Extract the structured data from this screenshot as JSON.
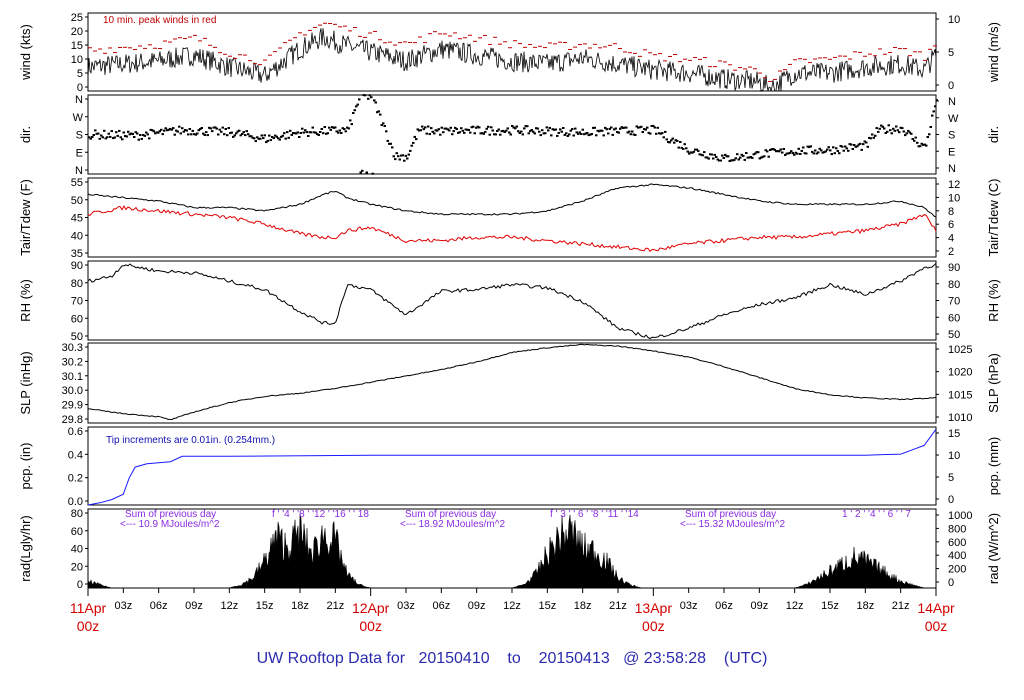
{
  "footer": {
    "prefix": "UW Rooftop Data for",
    "start": "20150410",
    "to": "to",
    "end": "20150413",
    "at": "@ 23:58:28",
    "tz": "(UTC)"
  },
  "time_axis": {
    "major": [
      {
        "top": "11Apr",
        "bottom": "00z",
        "hour": 0
      },
      {
        "top": "12Apr",
        "bottom": "00z",
        "hour": 24
      },
      {
        "top": "13Apr",
        "bottom": "00z",
        "hour": 48
      },
      {
        "top": "14Apr",
        "bottom": "00z",
        "hour": 72
      }
    ],
    "minor_hours": [
      3,
      6,
      9,
      12,
      15,
      18,
      21,
      27,
      30,
      33,
      36,
      39,
      42,
      45,
      51,
      54,
      57,
      60,
      63,
      66,
      69
    ],
    "minor_labels": [
      "03z",
      "06z",
      "09z",
      "12z",
      "15z",
      "18z",
      "21z",
      "03z",
      "06z",
      "09z",
      "12z",
      "15z",
      "18z",
      "21z",
      "03z",
      "06z",
      "09z",
      "12z",
      "15z",
      "18z",
      "21z"
    ],
    "range_hours": [
      0,
      72
    ],
    "major_color": "#d40000"
  },
  "panels": [
    {
      "id": "wind",
      "left_label": "wind (kts)",
      "right_label": "wind (m/s)",
      "left_ticks": [
        "25",
        "20",
        "15",
        "10",
        "5",
        "0"
      ],
      "right_ticks": [
        "10",
        "5",
        "0"
      ],
      "annotation": "10 min. peak winds in red",
      "annotation_color": "#c00000"
    },
    {
      "id": "dir",
      "left_label": "dir.",
      "right_label": "dir.",
      "left_ticks": [
        "N",
        "W",
        "S",
        "E",
        "N"
      ],
      "right_ticks": [
        "N",
        "W",
        "S",
        "E",
        "N"
      ]
    },
    {
      "id": "temp",
      "left_label": "Tair/Tdew (F)",
      "right_label": "Tair/Tdew (C)",
      "left_ticks": [
        "55",
        "50",
        "45",
        "40",
        "35"
      ],
      "right_ticks": [
        "12",
        "10",
        "8",
        "6",
        "4",
        "2"
      ]
    },
    {
      "id": "rh",
      "left_label": "RH (%)",
      "right_label": "RH (%)",
      "left_ticks": [
        "90",
        "80",
        "70",
        "60",
        "50"
      ],
      "right_ticks": [
        "90",
        "80",
        "70",
        "60",
        "50"
      ]
    },
    {
      "id": "slp",
      "left_label": "SLP (inHg)",
      "right_label": "SLP (hPa)",
      "left_ticks": [
        "30.3",
        "30.2",
        "30.1",
        "30.0",
        "29.9",
        "29.8"
      ],
      "right_ticks": [
        "1025",
        "1020",
        "1015",
        "1010"
      ]
    },
    {
      "id": "pcp",
      "left_label": "pcp. (in)",
      "right_label": "pcp. (mm)",
      "left_ticks": [
        "0.6",
        "0.4",
        "0.2",
        "0.0"
      ],
      "right_ticks": [
        "15",
        "10",
        "5",
        "0"
      ],
      "annotation": "Tip increments are 0.01in. (0.254mm.)",
      "annotation_color": "#1010b0"
    },
    {
      "id": "rad",
      "left_label": "rad(Lgly/hr)",
      "right_label": "rad (W/m^2)",
      "left_ticks": [
        "80",
        "60",
        "40",
        "20",
        "0"
      ],
      "right_ticks": [
        "1000",
        "800",
        "600",
        "400",
        "200",
        "0"
      ],
      "annotation_color": "#8a2be2",
      "sums": [
        {
          "title": "Sum of previous day",
          "value": "<--- 10.9 MJoules/m^2"
        },
        {
          "title": "Sum of previous day",
          "value": "<--- 18.92 MJoules/m^2"
        },
        {
          "title": "Sum of previous day",
          "value": "<--- 15.32 MJoules/m^2"
        }
      ],
      "sunhours": [
        {
          "text": "f ' '4 ' '8 ' '12 ' '16 ' ' 18"
        },
        {
          "text": "f ' 3 ' ' 6 ' '8 ' '11 ' '14"
        },
        {
          "text": "1 ' 2 ' '4 ' ' 6 ' ' 7"
        }
      ]
    }
  ],
  "chart_data": {
    "type": "line",
    "title": "UW Rooftop Data for 20150410 to 20150413 @ 23:58:28 (UTC)",
    "x_unit": "hours since 11Apr 00z",
    "series": [
      {
        "name": "wind speed (kts)",
        "color": "#000000",
        "x": [
          0,
          3,
          6,
          9,
          12,
          15,
          18,
          20,
          22,
          24,
          27,
          30,
          33,
          36,
          39,
          42,
          45,
          48,
          51,
          54,
          57,
          58,
          60,
          63,
          66,
          69,
          71,
          72
        ],
        "values": [
          8,
          9,
          10,
          12,
          8,
          5,
          14,
          18,
          15,
          13,
          10,
          14,
          12,
          10,
          9,
          11,
          9,
          7,
          6,
          4,
          3,
          1,
          6,
          6,
          8,
          9,
          7,
          12
        ]
      },
      {
        "name": "10 min peak wind (kts)",
        "color": "#c00000",
        "x": [
          0,
          3,
          6,
          9,
          12,
          15,
          18,
          20,
          22,
          24,
          27,
          30,
          33,
          36,
          39,
          42,
          45,
          48,
          51,
          54,
          57,
          58,
          60,
          63,
          66,
          69,
          71,
          72
        ],
        "values": [
          13,
          14,
          15,
          17,
          12,
          9,
          19,
          22,
          20,
          18,
          15,
          19,
          17,
          15,
          14,
          15,
          14,
          11,
          10,
          8,
          6,
          3,
          9,
          10,
          12,
          13,
          11,
          16
        ]
      },
      {
        "name": "wind direction (deg)",
        "color": "#000000",
        "x": [
          0,
          4,
          8,
          12,
          15,
          18,
          20,
          22,
          23,
          24,
          26,
          27,
          28,
          30,
          36,
          42,
          48,
          51,
          54,
          57,
          60,
          63,
          66,
          67,
          69,
          70,
          71,
          72
        ],
        "values": [
          180,
          175,
          200,
          190,
          160,
          190,
          195,
          200,
          355,
          355,
          80,
          80,
          200,
          195,
          200,
          190,
          200,
          110,
          70,
          90,
          105,
          110,
          130,
          200,
          210,
          160,
          120,
          350
        ]
      },
      {
        "name": "Tair (F)",
        "color": "#000000",
        "x": [
          0,
          3,
          6,
          9,
          12,
          15,
          18,
          20,
          21,
          22,
          24,
          27,
          30,
          33,
          36,
          39,
          42,
          45,
          48,
          51,
          54,
          57,
          60,
          63,
          66,
          69,
          71,
          72
        ],
        "values": [
          51,
          50,
          49,
          47,
          47,
          46,
          48,
          51,
          52,
          50,
          48,
          46,
          45,
          45,
          45,
          46,
          49,
          53,
          54,
          53,
          51,
          49,
          48,
          48,
          48,
          49,
          47,
          44
        ]
      },
      {
        "name": "Tdew (F)",
        "color": "#e00000",
        "x": [
          0,
          3,
          6,
          9,
          12,
          15,
          18,
          20,
          21,
          22,
          24,
          27,
          30,
          33,
          36,
          39,
          42,
          45,
          48,
          51,
          54,
          57,
          60,
          63,
          66,
          69,
          71,
          72
        ],
        "values": [
          45,
          47,
          46,
          45,
          44,
          42,
          39,
          38,
          38,
          40,
          41,
          37,
          37,
          38,
          38,
          37,
          36,
          35,
          34,
          36,
          37,
          38,
          38,
          39,
          40,
          42,
          45,
          40
        ]
      },
      {
        "name": "RH (%)",
        "color": "#000000",
        "x": [
          0,
          2,
          3,
          6,
          9,
          12,
          15,
          18,
          20,
          21,
          22,
          24,
          27,
          30,
          33,
          36,
          39,
          42,
          45,
          48,
          51,
          54,
          57,
          60,
          63,
          66,
          69,
          71,
          72
        ],
        "values": [
          80,
          83,
          90,
          86,
          85,
          80,
          75,
          62,
          55,
          55,
          78,
          75,
          60,
          74,
          75,
          78,
          76,
          68,
          52,
          46,
          52,
          60,
          66,
          70,
          78,
          72,
          80,
          88,
          90
        ]
      },
      {
        "name": "SLP (inHg)",
        "color": "#000000",
        "x": [
          0,
          3,
          6,
          7,
          9,
          12,
          15,
          18,
          21,
          24,
          27,
          30,
          33,
          36,
          39,
          42,
          45,
          48,
          51,
          54,
          57,
          60,
          63,
          66,
          69,
          72
        ],
        "values": [
          29.89,
          29.86,
          29.84,
          29.82,
          29.87,
          29.93,
          29.97,
          29.99,
          30.02,
          30.06,
          30.1,
          30.14,
          30.19,
          30.25,
          30.28,
          30.3,
          30.29,
          30.26,
          30.22,
          30.16,
          30.09,
          30.02,
          29.98,
          29.96,
          29.95,
          29.96
        ]
      },
      {
        "name": "precip (in)",
        "color": "#1a1aff",
        "x": [
          0,
          1,
          2,
          3,
          3.5,
          4,
          5,
          6,
          7,
          8,
          12,
          24,
          36,
          48,
          60,
          66,
          69,
          70,
          71,
          72
        ],
        "values": [
          0,
          0.02,
          0.05,
          0.1,
          0.25,
          0.35,
          0.38,
          0.39,
          0.4,
          0.45,
          0.45,
          0.46,
          0.46,
          0.46,
          0.46,
          0.46,
          0.47,
          0.51,
          0.55,
          0.7
        ]
      },
      {
        "name": "radiation (Lgly/hr)",
        "color": "#000000",
        "x": [
          0,
          1,
          2,
          12,
          13,
          14,
          15,
          16,
          17,
          18,
          19,
          20,
          21,
          22,
          23,
          24,
          36,
          37,
          38,
          39,
          40,
          41,
          42,
          43,
          44,
          45,
          46,
          47,
          48,
          60,
          61,
          62,
          63,
          64,
          65,
          66,
          67,
          68,
          69,
          70,
          71,
          72
        ],
        "values": [
          10,
          5,
          0,
          0,
          5,
          15,
          40,
          75,
          60,
          85,
          50,
          80,
          70,
          20,
          5,
          0,
          0,
          5,
          20,
          50,
          75,
          85,
          60,
          55,
          40,
          15,
          5,
          0,
          0,
          0,
          5,
          15,
          25,
          35,
          45,
          40,
          30,
          20,
          10,
          5,
          0,
          0
        ]
      }
    ],
    "ylim": {
      "wind": [
        0,
        26
      ],
      "dir": [
        0,
        360
      ],
      "temp": [
        32,
        56
      ],
      "rh": [
        45,
        92
      ],
      "slp": [
        29.8,
        30.31
      ],
      "pcp": [
        0,
        0.72
      ],
      "rad": [
        0,
        88
      ]
    }
  }
}
